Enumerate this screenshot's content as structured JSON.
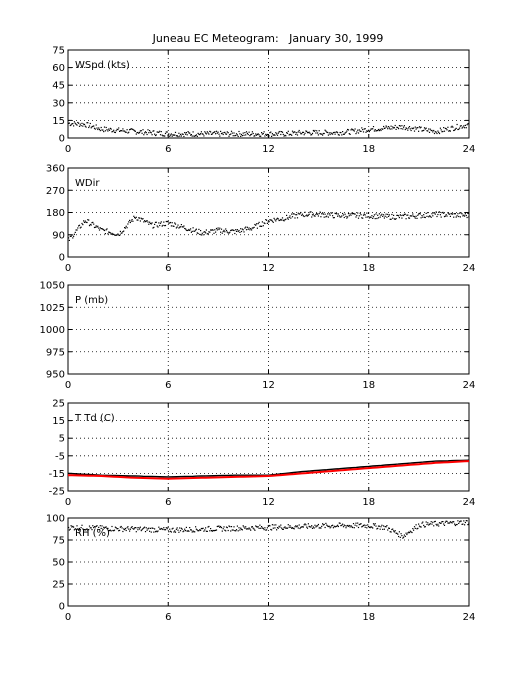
{
  "figure": {
    "title": "Juneau EC Meteogram:   January 30, 1999"
  },
  "colors": {
    "axis": "#000000",
    "grid": "#000000",
    "data": "#000000",
    "dewpoint": "#ff0000"
  },
  "chart_data": [
    {
      "type": "scatter",
      "label": "WSpd (kts)",
      "xlim": [
        0,
        24
      ],
      "ylim": [
        0,
        75
      ],
      "xticks": [
        0,
        6,
        12,
        18,
        24
      ],
      "yticks": [
        0,
        15,
        30,
        45,
        60,
        75
      ],
      "grid": true,
      "series": [
        {
          "x": [
            0,
            1,
            2,
            3,
            4,
            5,
            6,
            7,
            8,
            9,
            10,
            11,
            12,
            13,
            14,
            15,
            16,
            17,
            18,
            19,
            20,
            21,
            22,
            23,
            24
          ],
          "y": [
            13,
            12,
            8,
            7,
            6,
            5,
            4,
            4,
            4,
            4,
            4,
            4,
            4,
            4,
            5,
            5,
            5,
            6,
            8,
            9,
            10,
            8,
            6,
            9,
            12
          ]
        }
      ]
    },
    {
      "type": "scatter",
      "label": "WDir",
      "xlim": [
        0,
        24
      ],
      "ylim": [
        0,
        360
      ],
      "xticks": [
        0,
        6,
        12,
        18,
        24
      ],
      "yticks": [
        0,
        90,
        180,
        270,
        360
      ],
      "grid": true,
      "series": [
        {
          "x": [
            0,
            1,
            2,
            3,
            4,
            5,
            6,
            7,
            8,
            9,
            10,
            11,
            12,
            13,
            14,
            15,
            16,
            17,
            18,
            19,
            20,
            21,
            22,
            23,
            24
          ],
          "y": [
            70,
            150,
            110,
            95,
            165,
            130,
            140,
            120,
            100,
            110,
            105,
            120,
            150,
            160,
            175,
            175,
            170,
            170,
            170,
            165,
            165,
            170,
            175,
            172,
            170
          ]
        }
      ]
    },
    {
      "type": "scatter",
      "label": "P (mb)",
      "xlim": [
        0,
        24
      ],
      "ylim": [
        950,
        1050
      ],
      "xticks": [
        0,
        6,
        12,
        18,
        24
      ],
      "yticks": [
        950,
        975,
        1000,
        1025,
        1050
      ],
      "grid": true,
      "series": []
    },
    {
      "type": "line",
      "label": "T Td (C)",
      "xlim": [
        0,
        24
      ],
      "ylim": [
        -25,
        25
      ],
      "xticks": [
        0,
        6,
        12,
        18,
        24
      ],
      "yticks": [
        -25,
        -15,
        -5,
        5,
        15,
        25
      ],
      "grid": true,
      "series": [
        {
          "color": "black",
          "x": [
            0,
            2,
            4,
            6,
            8,
            10,
            12,
            14,
            16,
            18,
            20,
            22,
            24
          ],
          "y": [
            -15,
            -16,
            -16.5,
            -17,
            -16.5,
            -16,
            -16,
            -14,
            -12.5,
            -11,
            -9.5,
            -8,
            -7.5
          ]
        },
        {
          "color": "red",
          "x": [
            0,
            2,
            4,
            6,
            8,
            10,
            12,
            14,
            16,
            18,
            20,
            22,
            24
          ],
          "y": [
            -16,
            -16.5,
            -17.5,
            -18,
            -17.5,
            -17,
            -16.5,
            -15,
            -13.5,
            -12,
            -10.5,
            -9,
            -8
          ]
        }
      ]
    },
    {
      "type": "scatter",
      "label": "RH (%)",
      "xlim": [
        0,
        24
      ],
      "ylim": [
        0,
        100
      ],
      "xticks": [
        0,
        6,
        12,
        18,
        24
      ],
      "yticks": [
        0,
        25,
        50,
        75,
        100
      ],
      "grid": true,
      "series": [
        {
          "x": [
            0,
            2,
            4,
            6,
            8,
            10,
            12,
            14,
            16,
            18,
            19,
            20,
            21,
            22,
            24
          ],
          "y": [
            90,
            89,
            88,
            87,
            88,
            89,
            90,
            91,
            92,
            92,
            90,
            80,
            93,
            94,
            96
          ]
        }
      ]
    }
  ]
}
